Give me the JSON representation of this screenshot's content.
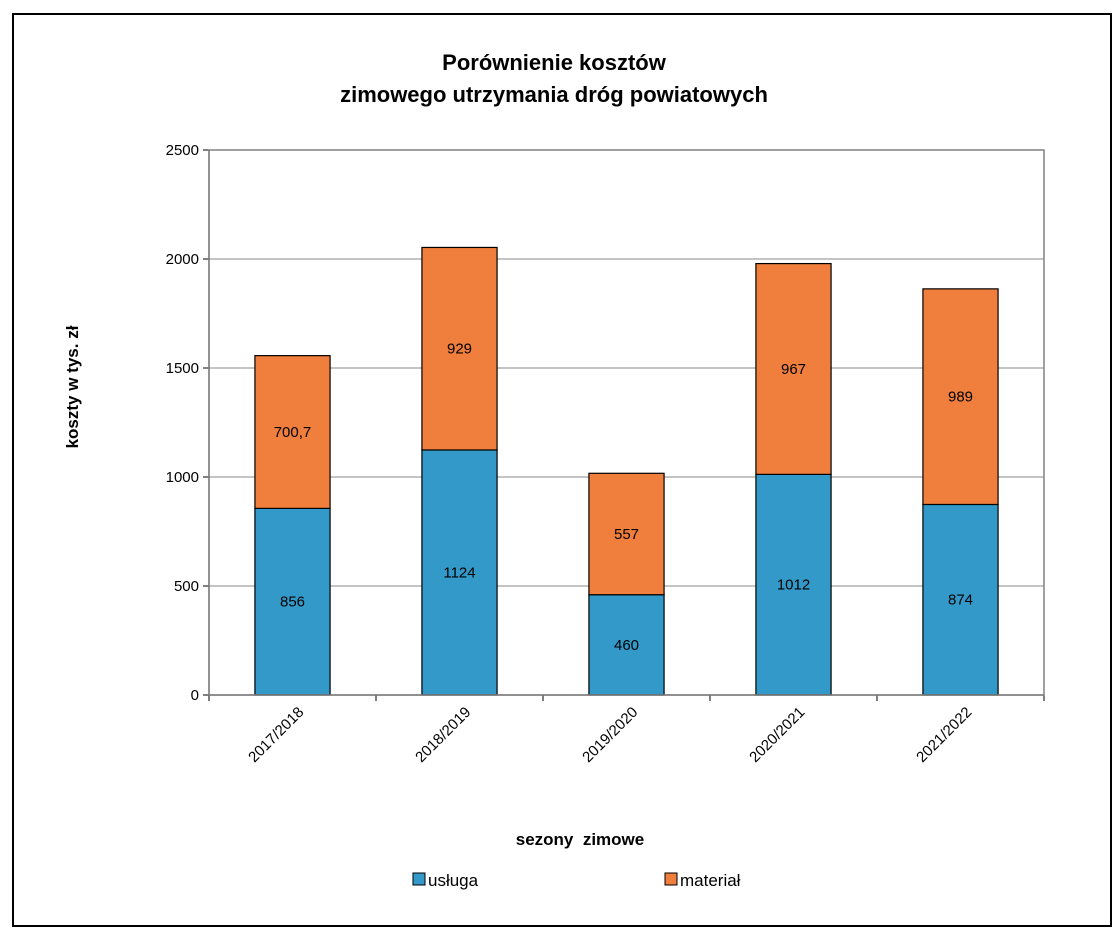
{
  "chart_data": {
    "type": "bar",
    "stacked": true,
    "title": [
      "Porównienie kosztów",
      "zimowego utrzymania dróg powiatowych"
    ],
    "xlabel": "sezony  zimowe",
    "ylabel": "koszty w tys. zł",
    "ylim": [
      0,
      2500
    ],
    "yticks": [
      "0",
      "500",
      "1000",
      "1500",
      "2000",
      "2500"
    ],
    "grid": true,
    "legend_position": "bottom",
    "categories": [
      "2017/2018",
      "2018/2019",
      "2019/2020",
      "2020/2021",
      "2021/2022"
    ],
    "series": [
      {
        "name": "usługa",
        "color": "#3399c8",
        "values": [
          856,
          1124,
          460,
          1012,
          874
        ],
        "labels": [
          "856",
          "1124",
          "460",
          "1012",
          "874"
        ]
      },
      {
        "name": "materiał",
        "color": "#f07e3c",
        "values": [
          700.7,
          929,
          557,
          967,
          989
        ],
        "labels": [
          "700,7",
          "929",
          "557",
          "967",
          "989"
        ]
      }
    ]
  }
}
